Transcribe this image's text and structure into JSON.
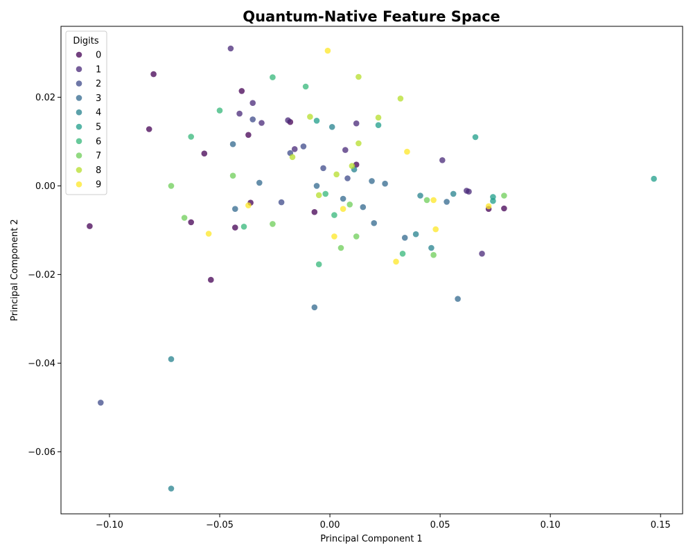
{
  "chart_data": {
    "type": "scatter",
    "title": "Quantum-Native Feature Space",
    "xlabel": "Principal Component 1",
    "ylabel": "Principal Component 2",
    "xlim": [
      -0.122,
      0.16
    ],
    "ylim": [
      -0.074,
      0.036
    ],
    "xticks": [
      -0.1,
      -0.05,
      0.0,
      0.05,
      0.1,
      0.15
    ],
    "xtick_labels": [
      "−0.10",
      "−0.05",
      "0.00",
      "0.05",
      "0.10",
      "0.15"
    ],
    "yticks": [
      -0.06,
      -0.04,
      -0.02,
      0.0,
      0.02
    ],
    "ytick_labels": [
      "−0.06",
      "−0.04",
      "−0.02",
      "0.00",
      "0.02"
    ],
    "grid": false,
    "legend": {
      "title": "Digits",
      "placement": "top-left",
      "entries": [
        "0",
        "1",
        "2",
        "3",
        "4",
        "5",
        "6",
        "7",
        "8",
        "9"
      ]
    },
    "point_opacity": 0.75,
    "series": [
      {
        "name": "0",
        "color": "#440154",
        "points": [
          [
            -0.08,
            0.0252
          ],
          [
            -0.082,
            0.0128
          ],
          [
            -0.04,
            0.0214
          ],
          [
            -0.037,
            0.0115
          ],
          [
            -0.057,
            0.0073
          ],
          [
            -0.109,
            -0.0091
          ],
          [
            -0.063,
            -0.0082
          ],
          [
            -0.043,
            -0.0094
          ],
          [
            -0.036,
            -0.0038
          ],
          [
            -0.054,
            -0.0212
          ],
          [
            -0.018,
            0.0144
          ],
          [
            0.012,
            0.0048
          ],
          [
            -0.007,
            -0.0059
          ],
          [
            0.072,
            -0.0052
          ],
          [
            0.079,
            -0.0051
          ]
        ]
      },
      {
        "name": "1",
        "color": "#482878",
        "points": [
          [
            -0.045,
            0.031
          ],
          [
            -0.041,
            0.0163
          ],
          [
            -0.035,
            0.0187
          ],
          [
            -0.031,
            0.0142
          ],
          [
            -0.019,
            0.0148
          ],
          [
            -0.016,
            0.0083
          ],
          [
            0.007,
            0.0081
          ],
          [
            0.012,
            0.0141
          ],
          [
            0.051,
            0.0058
          ],
          [
            0.062,
            -0.0011
          ],
          [
            0.063,
            -0.0013
          ],
          [
            0.069,
            -0.0153
          ]
        ]
      },
      {
        "name": "2",
        "color": "#3e4989",
        "points": [
          [
            -0.035,
            0.015
          ],
          [
            -0.018,
            0.0074
          ],
          [
            -0.012,
            0.0089
          ],
          [
            -0.003,
            0.004
          ],
          [
            0.008,
            0.0017
          ],
          [
            -0.022,
            -0.0037
          ],
          [
            -0.104,
            -0.0489
          ]
        ]
      },
      {
        "name": "3",
        "color": "#31688e",
        "points": [
          [
            -0.044,
            0.0094
          ],
          [
            -0.032,
            0.0007
          ],
          [
            -0.006,
            0.0
          ],
          [
            0.019,
            0.0011
          ],
          [
            0.025,
            0.0005
          ],
          [
            0.006,
            -0.0029
          ],
          [
            0.015,
            -0.0048
          ],
          [
            0.02,
            -0.0084
          ],
          [
            0.034,
            -0.0117
          ],
          [
            0.053,
            -0.0036
          ],
          [
            -0.007,
            -0.0274
          ],
          [
            0.058,
            -0.0255
          ],
          [
            -0.043,
            -0.0052
          ]
        ]
      },
      {
        "name": "4",
        "color": "#26828e",
        "points": [
          [
            0.001,
            0.0133
          ],
          [
            0.011,
            0.0037
          ],
          [
            0.039,
            -0.0109
          ],
          [
            0.041,
            -0.0022
          ],
          [
            0.046,
            -0.014
          ],
          [
            0.056,
            -0.0018
          ],
          [
            -0.072,
            -0.0391
          ],
          [
            -0.072,
            -0.0683
          ]
        ]
      },
      {
        "name": "5",
        "color": "#1f9e89",
        "points": [
          [
            -0.006,
            0.0147
          ],
          [
            0.022,
            0.0137
          ],
          [
            0.066,
            0.011
          ],
          [
            0.074,
            -0.0025
          ],
          [
            0.074,
            -0.0034
          ],
          [
            0.147,
            0.0016
          ]
        ]
      },
      {
        "name": "6",
        "color": "#35b779",
        "points": [
          [
            -0.026,
            0.0245
          ],
          [
            -0.011,
            0.0224
          ],
          [
            -0.05,
            0.017
          ],
          [
            -0.063,
            0.0111
          ],
          [
            -0.002,
            -0.0018
          ],
          [
            0.002,
            -0.0066
          ],
          [
            -0.039,
            -0.0092
          ],
          [
            -0.005,
            -0.0177
          ],
          [
            0.033,
            -0.0153
          ]
        ]
      },
      {
        "name": "7",
        "color": "#6ece58",
        "points": [
          [
            -0.072,
            -0.0
          ],
          [
            -0.044,
            0.0023
          ],
          [
            -0.066,
            -0.0072
          ],
          [
            -0.026,
            -0.0086
          ],
          [
            0.009,
            -0.0042
          ],
          [
            0.012,
            -0.0114
          ],
          [
            0.005,
            -0.014
          ],
          [
            0.044,
            -0.0032
          ],
          [
            0.047,
            -0.0156
          ],
          [
            0.079,
            -0.0022
          ]
        ]
      },
      {
        "name": "8",
        "color": "#b5de2b",
        "points": [
          [
            0.013,
            0.0246
          ],
          [
            0.032,
            0.0197
          ],
          [
            0.022,
            0.0154
          ],
          [
            -0.009,
            0.0156
          ],
          [
            0.013,
            0.0096
          ],
          [
            -0.017,
            0.0065
          ],
          [
            0.003,
            0.0026
          ],
          [
            -0.005,
            -0.0021
          ],
          [
            0.01,
            0.0045
          ]
        ]
      },
      {
        "name": "9",
        "color": "#fde725",
        "points": [
          [
            -0.001,
            0.0305
          ],
          [
            0.035,
            0.0077
          ],
          [
            -0.037,
            -0.0044
          ],
          [
            -0.055,
            -0.0108
          ],
          [
            0.002,
            -0.0114
          ],
          [
            0.006,
            -0.0052
          ],
          [
            0.03,
            -0.0171
          ],
          [
            0.048,
            -0.0098
          ],
          [
            0.047,
            -0.0032
          ],
          [
            0.072,
            -0.0046
          ]
        ]
      }
    ]
  }
}
